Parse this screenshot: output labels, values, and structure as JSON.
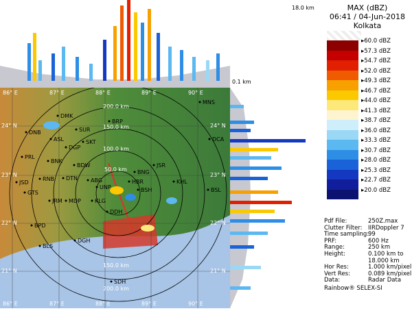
{
  "header": {
    "product": "MAX (dBZ)",
    "datetime": "06:41 / 04-Jun-2018",
    "station": "Kolkata"
  },
  "cross_section": {
    "top_height_label": "18.0 km",
    "bottom_height_label": "0.1 km"
  },
  "scale": [
    {
      "label": "60.0 dBZ",
      "color": "#8c0000"
    },
    {
      "label": "57.3 dBZ",
      "color": "#c40000"
    },
    {
      "label": "54.7 dBZ",
      "color": "#e02000"
    },
    {
      "label": "52.0 dBZ",
      "color": "#f05a00"
    },
    {
      "label": "49.3 dBZ",
      "color": "#f8a000"
    },
    {
      "label": "46.7 dBZ",
      "color": "#fcc800"
    },
    {
      "label": "44.0 dBZ",
      "color": "#fde87a"
    },
    {
      "label": "41.3 dBZ",
      "color": "#fff4d0"
    },
    {
      "label": "38.7 dBZ",
      "color": "#cfeefc"
    },
    {
      "label": "36.0 dBZ",
      "color": "#9ad8f6"
    },
    {
      "label": "33.3 dBZ",
      "color": "#5cb8f0"
    },
    {
      "label": "30.7 dBZ",
      "color": "#2e8ee6"
    },
    {
      "label": "28.0 dBZ",
      "color": "#1a62d8"
    },
    {
      "label": "25.3 dBZ",
      "color": "#1438c0"
    },
    {
      "label": "22.7 dBZ",
      "color": "#101e9c"
    },
    {
      "label": "20.0 dBZ",
      "color": "#0c1270"
    }
  ],
  "info": [
    {
      "key": "Pdf File:",
      "value": "250Z.max"
    },
    {
      "key": "Clutter Filter:",
      "value": "IIRDoppler 7"
    },
    {
      "key": "Time sampling:",
      "value": "99"
    },
    {
      "key": "PRF:",
      "value": "600 Hz"
    },
    {
      "key": "Range:",
      "value": "250 km"
    },
    {
      "key": "Height:",
      "value": "0.100 km to"
    },
    {
      "key": "",
      "value": "18.000 km"
    },
    {
      "key": "Hor Res:",
      "value": "1.000 km/pixel"
    },
    {
      "key": "Vert Res:",
      "value": "0.089 km/pixel"
    },
    {
      "key": "Data:",
      "value": "Radar Data"
    }
  ],
  "footer": "Rainbow® SELEX-SI",
  "map": {
    "lon_labels": [
      "86° E",
      "87° E",
      "88° E",
      "89° E",
      "90° E"
    ],
    "lat_labels": [
      "24° N",
      "23° N",
      "22° N",
      "21° N"
    ],
    "range_labels": [
      "200.0 km",
      "150.0 km",
      "100.0 km",
      "50.0 km",
      "150.0 km",
      "200.0 km"
    ],
    "cities": [
      {
        "name": "MNS"
      },
      {
        "name": "DMK"
      },
      {
        "name": "BRP"
      },
      {
        "name": "DNB"
      },
      {
        "name": "SUR"
      },
      {
        "name": "ASL"
      },
      {
        "name": "SKT"
      },
      {
        "name": "DGP"
      },
      {
        "name": "DCA"
      },
      {
        "name": "PRL"
      },
      {
        "name": "BNK"
      },
      {
        "name": "BDW"
      },
      {
        "name": "BNG"
      },
      {
        "name": "JSR"
      },
      {
        "name": "RNB"
      },
      {
        "name": "DTN"
      },
      {
        "name": "ABG"
      },
      {
        "name": "KHL"
      },
      {
        "name": "JSD"
      },
      {
        "name": "UNP"
      },
      {
        "name": "HBR"
      },
      {
        "name": "GTS"
      },
      {
        "name": "JRM"
      },
      {
        "name": "MDP"
      },
      {
        "name": "KLG"
      },
      {
        "name": "BSH"
      },
      {
        "name": "BSL"
      },
      {
        "name": "DDH"
      },
      {
        "name": "BPD"
      },
      {
        "name": "BLS"
      },
      {
        "name": "DGH"
      },
      {
        "name": "SDH"
      }
    ]
  }
}
